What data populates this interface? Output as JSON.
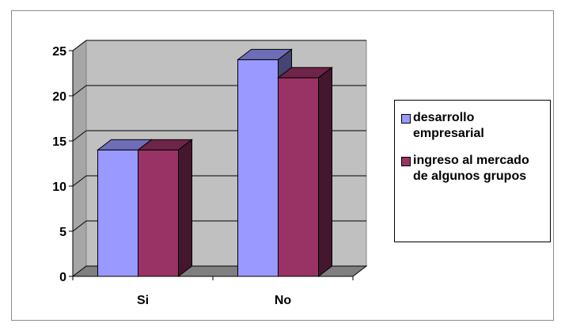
{
  "chart_data": {
    "type": "bar",
    "categories": [
      "Si",
      "No"
    ],
    "series": [
      {
        "name": "desarrollo empresarial",
        "values": [
          14,
          24
        ],
        "color": "#9999ff"
      },
      {
        "name": "ingreso al mercado de algunos grupos",
        "values": [
          14,
          22
        ],
        "color": "#993366"
      }
    ],
    "ylim": [
      0,
      25
    ],
    "yticks": [
      "0",
      "5",
      "10",
      "15",
      "20",
      "25"
    ],
    "title": "",
    "xlabel": "",
    "ylabel": "",
    "grid": true,
    "legend_position": "right",
    "three_d": true,
    "wall_color": "#c0c0c0",
    "floor_color": "#808080"
  },
  "legend": {
    "items": [
      "desarrollo empresarial",
      "ingreso al mercado de algunos grupos"
    ],
    "colors": [
      "#9999ff",
      "#993366"
    ]
  }
}
